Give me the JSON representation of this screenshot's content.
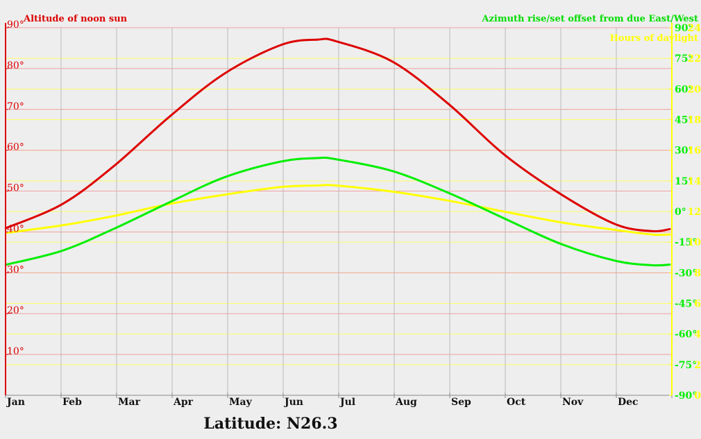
{
  "chart_data": {
    "type": "line",
    "legend": {
      "altitude": "Altitude of noon sun",
      "azimuth": "Azimuth rise/set offset from due East/West",
      "daylight": "Hours of daylight"
    },
    "footer": "Latitude: N26.3",
    "x_categories": [
      "Jan",
      "Feb",
      "Mar",
      "Apr",
      "May",
      "Jun",
      "Jul",
      "Aug",
      "Sep",
      "Oct",
      "Nov",
      "Dec"
    ],
    "left_axis": {
      "ticks": [
        "90°",
        "80°",
        "70°",
        "60°",
        "50°",
        "40°",
        "30°",
        "20°",
        "10°"
      ],
      "tick_values": [
        90,
        80,
        70,
        60,
        50,
        40,
        30,
        20,
        10
      ],
      "range": [
        0,
        90
      ]
    },
    "right_axis_azimuth": {
      "ticks": [
        "90°",
        "75°",
        "60°",
        "45°",
        "30°",
        "15°",
        "0°",
        "-15°",
        "-30°",
        "-45°",
        "-60°",
        "-75°",
        "-90°"
      ],
      "tick_values": [
        90,
        75,
        60,
        45,
        30,
        15,
        0,
        -15,
        -30,
        -45,
        -60,
        -75,
        -90
      ],
      "range": [
        -90,
        90
      ]
    },
    "right_axis_daylight": {
      "ticks": [
        "24",
        "22",
        "20",
        "18",
        "16",
        "14",
        "12",
        "10",
        "8",
        "6",
        "4",
        "2",
        "0"
      ],
      "tick_values": [
        24,
        22,
        20,
        18,
        16,
        14,
        12,
        10,
        8,
        6,
        4,
        2,
        0
      ],
      "range": [
        0,
        24
      ]
    },
    "colors": {
      "altitude": "#dd0000",
      "azimuth": "#00ee00",
      "daylight": "#ffff00",
      "grid_vertical": "#bbbbbb",
      "grid_altitude": "#f0a0a0",
      "grid_yellow": "#ffff66",
      "background": "#eeeeee"
    },
    "series": [
      {
        "name": "Altitude of noon sun",
        "axis": "left",
        "x_day": [
          1,
          32,
          60,
          91,
          121,
          152,
          172,
          182,
          213,
          244,
          274,
          305,
          335,
          355,
          365
        ],
        "values": [
          40.9,
          46.8,
          56.0,
          68.3,
          78.8,
          85.8,
          87.1,
          86.7,
          81.7,
          71.2,
          59.0,
          49.3,
          41.9,
          40.2,
          40.7
        ]
      },
      {
        "name": "Azimuth rise/set offset from due East/West",
        "axis": "right_azimuth",
        "x_day": [
          1,
          32,
          60,
          91,
          121,
          152,
          172,
          182,
          213,
          244,
          274,
          305,
          335,
          355,
          365
        ],
        "values": [
          -26.1,
          -19.2,
          -8.6,
          4.6,
          16.8,
          24.5,
          26.2,
          25.6,
          19.8,
          9.0,
          -3.3,
          -15.8,
          -24.1,
          -26.3,
          -26.0
        ]
      },
      {
        "name": "Hours of daylight",
        "axis": "right_daylight",
        "x_day": [
          1,
          32,
          60,
          91,
          121,
          152,
          172,
          182,
          213,
          244,
          274,
          305,
          335,
          355,
          365
        ],
        "values": [
          10.6,
          11.1,
          11.7,
          12.5,
          13.1,
          13.6,
          13.7,
          13.7,
          13.3,
          12.7,
          12.0,
          11.3,
          10.8,
          10.5,
          10.5
        ]
      }
    ]
  }
}
